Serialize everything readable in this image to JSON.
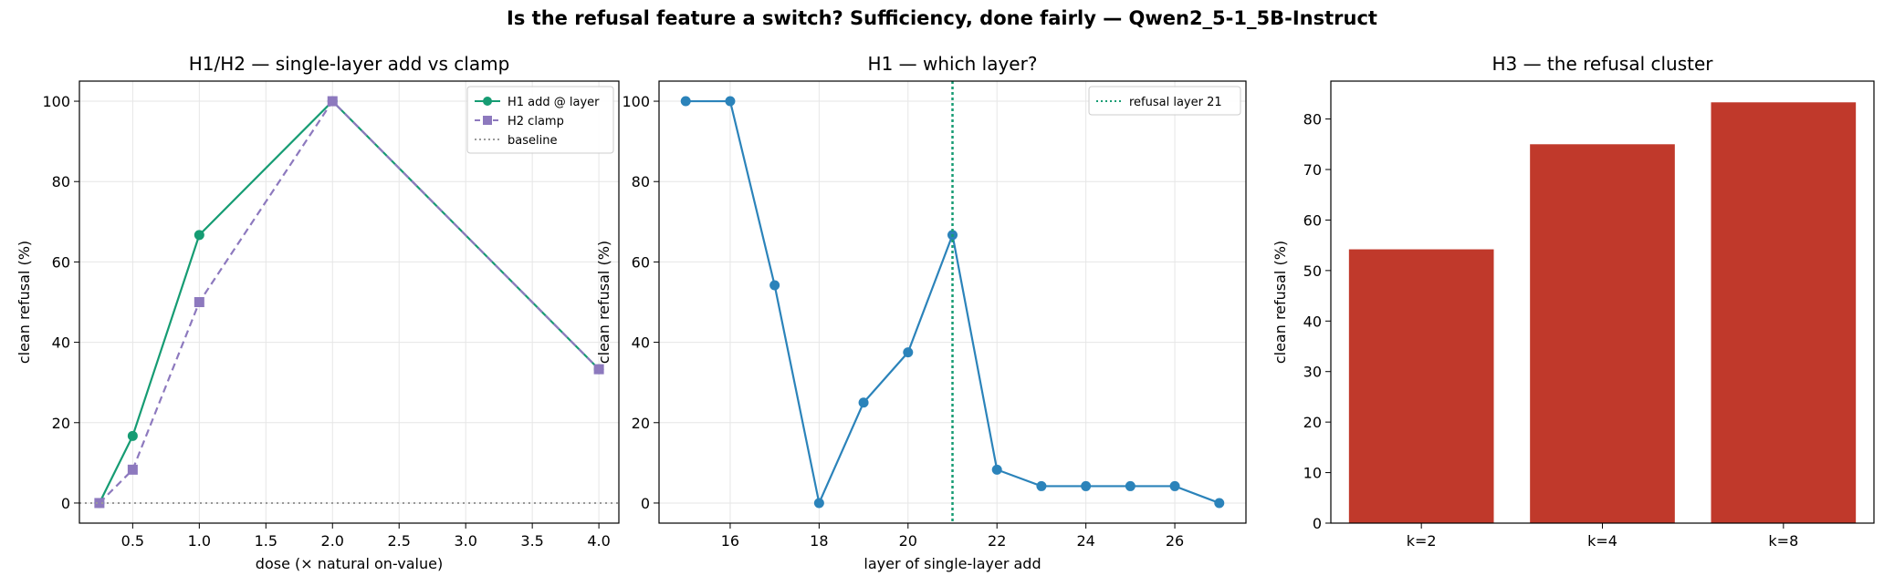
{
  "figure": {
    "title": "Is the refusal feature a switch? Sufficiency, done fairly — Qwen2_5-1_5B-Instruct"
  },
  "chart_data": [
    {
      "type": "line",
      "title": "H1/H2 — single-layer add vs clamp",
      "xlabel": "dose (× natural on-value)",
      "ylabel": "clean refusal (%)",
      "xlim": [
        0.1,
        4.15
      ],
      "ylim": [
        -5,
        105
      ],
      "xticks": [
        0.5,
        1.0,
        1.5,
        2.0,
        2.5,
        3.0,
        3.5,
        4.0
      ],
      "xticklabels": [
        "0.5",
        "1.0",
        "1.5",
        "2.0",
        "2.5",
        "3.0",
        "3.5",
        "4.0"
      ],
      "yticks": [
        0,
        20,
        40,
        60,
        80,
        100
      ],
      "grid": true,
      "legend": "top-right",
      "series": [
        {
          "name": "H1 add @ layer",
          "x": [
            0.25,
            0.5,
            1.0,
            2.0,
            4.0
          ],
          "y": [
            0,
            16.7,
            66.7,
            100,
            33.3
          ],
          "color": "#169c73",
          "marker": "circle",
          "linestyle": "solid"
        },
        {
          "name": "H2 clamp",
          "x": [
            0.25,
            0.5,
            1.0,
            2.0,
            4.0
          ],
          "y": [
            0,
            8.3,
            50,
            100,
            33.3
          ],
          "color": "#8d79be",
          "marker": "square",
          "linestyle": "dashed"
        },
        {
          "name": "baseline",
          "hline": 0,
          "color": "#999999",
          "linestyle": "dotted"
        }
      ]
    },
    {
      "type": "line",
      "title": "H1 — which layer?",
      "xlabel": "layer of single-layer add",
      "ylabel": "clean refusal (%)",
      "xlim": [
        14.4,
        27.6
      ],
      "ylim": [
        -5,
        105
      ],
      "xticks": [
        16,
        18,
        20,
        22,
        24,
        26
      ],
      "xticklabels": [
        "16",
        "18",
        "20",
        "22",
        "24",
        "26"
      ],
      "yticks": [
        0,
        20,
        40,
        60,
        80,
        100
      ],
      "grid": true,
      "legend": "top-right",
      "series": [
        {
          "name": "",
          "x": [
            15,
            16,
            17,
            18,
            19,
            20,
            21,
            22,
            23,
            24,
            25,
            26,
            27
          ],
          "y": [
            100,
            100,
            54.2,
            0,
            25,
            37.5,
            66.7,
            8.3,
            4.2,
            4.2,
            4.2,
            4.2,
            0
          ],
          "color": "#2b83ba",
          "marker": "circle",
          "linestyle": "solid"
        },
        {
          "name": "refusal layer 21",
          "vline": 21,
          "color": "#169c73",
          "linestyle": "dotted"
        }
      ]
    },
    {
      "type": "bar",
      "title": "H3 — the refusal cluster",
      "xlabel": "",
      "ylabel": "clean refusal (%)",
      "categories": [
        "k=2",
        "k=4",
        "k=8"
      ],
      "values": [
        54.2,
        75,
        83.3
      ],
      "ylim": [
        0,
        87.5
      ],
      "yticks": [
        0,
        10,
        20,
        30,
        40,
        50,
        60,
        70,
        80
      ],
      "color": "#c0392b",
      "grid": false
    }
  ]
}
